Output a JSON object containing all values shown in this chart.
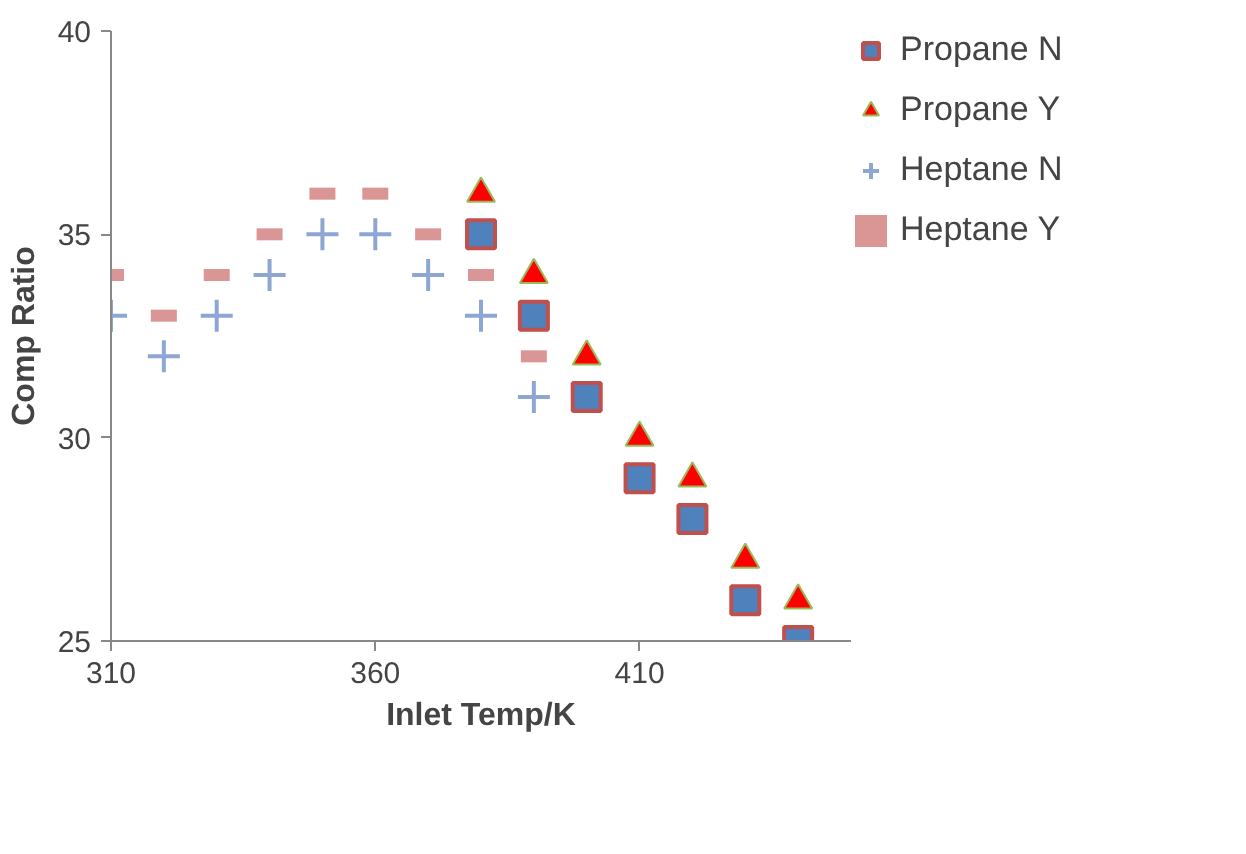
{
  "chart_data": {
    "type": "scatter",
    "xlabel": "Inlet Temp/K",
    "ylabel": "Comp Ratio",
    "xlim": [
      310,
      450
    ],
    "xticks": [
      310,
      360,
      410
    ],
    "ylim": [
      25,
      40
    ],
    "yticks": [
      25,
      30,
      35,
      40
    ],
    "grid": false,
    "legend": "top right",
    "series": [
      {
        "name": "Propane N",
        "color": "#4f81bd",
        "marker": "square",
        "x": [
          380,
          390,
          400,
          410,
          420,
          430,
          440
        ],
        "values": [
          35,
          33,
          31,
          29,
          28,
          26,
          25
        ]
      },
      {
        "name": "Propane Y",
        "color": "#ff0000",
        "marker": "triangle",
        "x": [
          380,
          390,
          400,
          410,
          420,
          430,
          440
        ],
        "values": [
          36,
          34,
          32,
          30,
          29,
          27,
          26
        ]
      },
      {
        "name": "Heptane N",
        "color": "#8ea6d4",
        "marker": "cross",
        "x": [
          310,
          320,
          330,
          340,
          350,
          360,
          370,
          380,
          390
        ],
        "values": [
          33,
          32,
          33,
          34,
          35,
          35,
          34,
          33,
          31
        ]
      },
      {
        "name": "Heptane Y",
        "color": "#d99694",
        "x": [
          310,
          320,
          330,
          340,
          350,
          360,
          370,
          380,
          390
        ],
        "values": [
          34,
          33,
          34,
          35,
          36,
          36,
          35,
          34,
          32
        ]
      }
    ]
  }
}
